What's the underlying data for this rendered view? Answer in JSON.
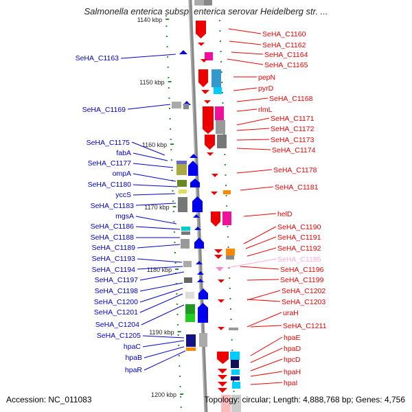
{
  "title": "Salmonella enterica subsp. enterica serovar Heidelberg str. ...",
  "accession": "Accession: NC_011083",
  "topology": "Topology: circular; Length: 4,888,768 bp; Genes: 4,756",
  "colors": {
    "axis": "#8a8a8a",
    "tick_dash": "#2e8b2e",
    "left_label": "#0000cc",
    "right_label": "#ee0000",
    "faint_label": "#ffaad4",
    "blue_gene": "#0000ee",
    "red_gene": "#ee0000"
  },
  "kbp_ticks": [
    {
      "label": "1140 kbp",
      "kbp": 1140
    },
    {
      "label": "1150 kbp",
      "kbp": 1150
    },
    {
      "label": "1160 kbp",
      "kbp": 1160
    },
    {
      "label": "1170 kbp",
      "kbp": 1170
    },
    {
      "label": "1180 kbp",
      "kbp": 1180
    },
    {
      "label": "1190 kbp",
      "kbp": 1190
    },
    {
      "label": "1200 kbp",
      "kbp": 1200
    }
  ],
  "left_labels": [
    "SeHA_C1163",
    "SeHA_C1169",
    "SeHA_C1175",
    "fabA",
    "SeHA_C1177",
    "ompA",
    "SeHA_C1180",
    "yccS",
    "SeHA_C1183",
    "mgsA",
    "SeHA_C1186",
    "SeHA_C1188",
    "SeHA_C1189",
    "SeHA_C1193",
    "SeHA_C1194",
    "SeHA_C1197",
    "SeHA_C1198",
    "SeHA_C1200",
    "SeHA_C1201",
    "SeHA_C1204",
    "SeHA_C1205",
    "hpaC",
    "hpaB",
    "hpaR"
  ],
  "right_labels": [
    "SeHA_C1160",
    "SeHA_C1162",
    "SeHA_C1164",
    "SeHA_C1165",
    "pepN",
    "pyrD",
    "SeHA_C1168",
    "rlmL",
    "SeHA_C1171",
    "SeHA_C1172",
    "SeHA_C1173",
    "SeHA_C1174",
    "SeHA_C1178",
    "SeHA_C1181",
    "helD",
    "SeHA_C1190",
    "SeHA_C1191",
    "SeHA_C1192",
    "SeHA_C1195",
    "SeHA_C1196",
    "SeHA_C1199",
    "SeHA_C1202",
    "SeHA_C1203",
    "uraH",
    "SeHA_C1211",
    "hpaE",
    "hpaD",
    "hpcD",
    "hpaH",
    "hpaI"
  ],
  "faint_right_labels": [
    "SeHA_C1195"
  ]
}
